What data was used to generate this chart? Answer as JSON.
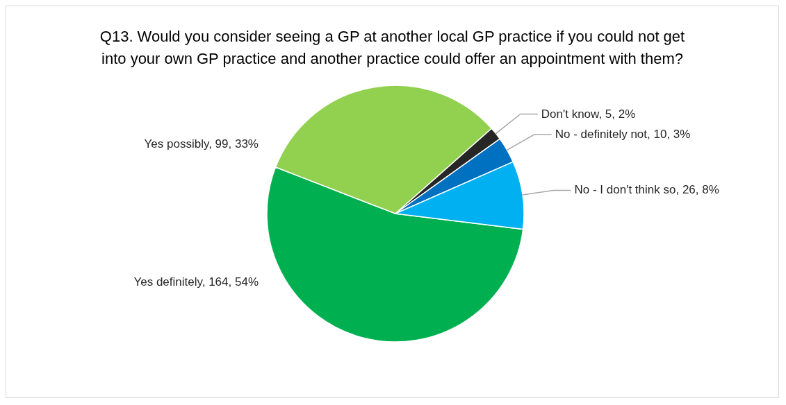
{
  "chart_data": {
    "type": "pie",
    "title": "Q13. Would you consider seeing a GP at another local GP practice if you could not get into your own GP practice and another practice could offer an appointment with them?",
    "categories": [
      "Yes definitely",
      "Yes possibly",
      "Don't know",
      "No - definitely not",
      "No - I don't think so"
    ],
    "values": [
      164,
      99,
      5,
      10,
      26
    ],
    "colors": [
      "#00b050",
      "#92d050",
      "#262626",
      "#0070c0",
      "#00b0f0"
    ],
    "value_labels": [
      "164, 54%",
      "99, 33%",
      "5, 2%",
      "10, 3%",
      "26, 8%"
    ],
    "legend": false
  }
}
